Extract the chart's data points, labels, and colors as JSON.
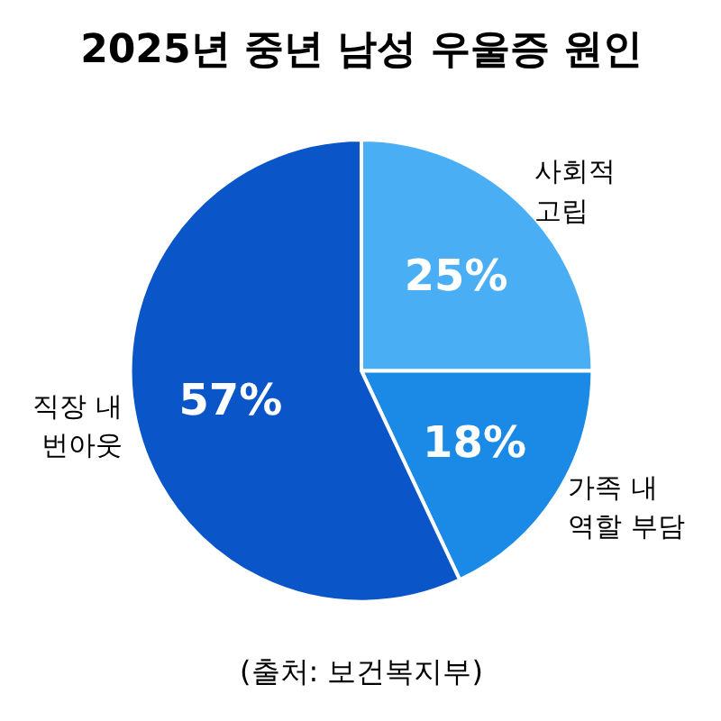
{
  "chart_data": {
    "type": "pie",
    "title": "2025년 중년 남성 우울증 원인",
    "categories": [
      "사회적\n고립",
      "가족 내\n역할 부담",
      "직장 내\n번아웃"
    ],
    "values": [
      25,
      18,
      57
    ],
    "colors": [
      "#4aaef5",
      "#1a8ae6",
      "#0a55c8"
    ],
    "value_labels": [
      "25%",
      "18%",
      "57%"
    ],
    "annotations": [
      "(출처: 보건복지부)"
    ]
  }
}
